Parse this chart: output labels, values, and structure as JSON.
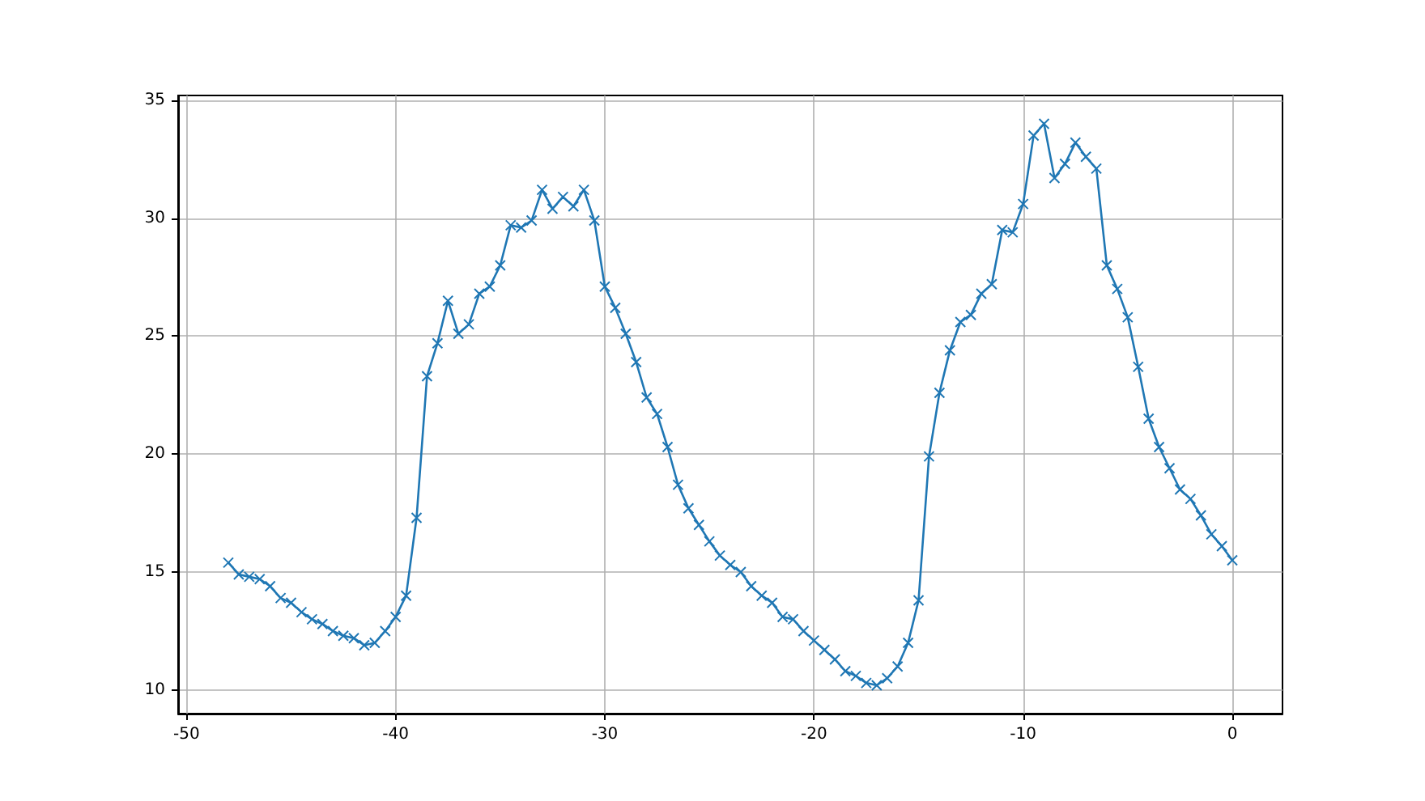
{
  "chart_data": {
    "type": "line",
    "x": [
      -48,
      -47.5,
      -47,
      -46.5,
      -46,
      -45.5,
      -45,
      -44.5,
      -44,
      -43.5,
      -43,
      -42.5,
      -42,
      -41.5,
      -41,
      -40.5,
      -40,
      -39.5,
      -39,
      -38.5,
      -38,
      -37.5,
      -37,
      -36.5,
      -36,
      -35.5,
      -35,
      -34.5,
      -34,
      -33.5,
      -33,
      -32.5,
      -32,
      -31.5,
      -31,
      -30.5,
      -30,
      -29.5,
      -29,
      -28.5,
      -28,
      -27.5,
      -27,
      -26.5,
      -26,
      -25.5,
      -25,
      -24.5,
      -24,
      -23.5,
      -23,
      -22.5,
      -22,
      -21.5,
      -21,
      -20.5,
      -20,
      -19.5,
      -19,
      -18.5,
      -18,
      -17.5,
      -17,
      -16.5,
      -16,
      -15.5,
      -15,
      -14.5,
      -14,
      -13.5,
      -13,
      -12.5,
      -12,
      -11.5,
      -11,
      -10.5,
      -10,
      -9.5,
      -9,
      -8.5,
      -8,
      -7.5,
      -7,
      -6.5,
      -6,
      -5.5,
      -5,
      -4.5,
      -4,
      -3.5,
      -3,
      -2.5,
      -2,
      -1.5,
      -1,
      -0.5,
      0
    ],
    "series": [
      {
        "color": "#1f77b4",
        "values": [
          15.4,
          14.9,
          14.8,
          14.7,
          14.4,
          13.9,
          13.7,
          13.3,
          13.0,
          12.8,
          12.5,
          12.3,
          12.2,
          11.9,
          12.0,
          12.5,
          13.1,
          14.0,
          17.3,
          23.3,
          24.7,
          26.5,
          25.1,
          25.5,
          26.8,
          27.1,
          28.0,
          29.7,
          29.6,
          29.9,
          31.2,
          30.4,
          30.9,
          30.5,
          31.2,
          29.9,
          27.1,
          26.2,
          25.1,
          23.9,
          22.4,
          21.7,
          20.3,
          18.7,
          17.7,
          17.0,
          16.3,
          15.7,
          15.3,
          15.0,
          14.4,
          14.0,
          13.7,
          13.1,
          13.0,
          12.5,
          12.1,
          11.7,
          11.3,
          10.8,
          10.6,
          10.3,
          10.2,
          10.5,
          11.0,
          12.0,
          13.8,
          19.9,
          22.6,
          24.4,
          25.6,
          25.9,
          26.8,
          27.2,
          29.5,
          29.4,
          30.6,
          33.5,
          34.0,
          31.7,
          32.3,
          33.2,
          32.6,
          32.1,
          28.0,
          27.0,
          25.8,
          23.7,
          21.5,
          20.3,
          19.4,
          18.5,
          18.1,
          17.4,
          16.6,
          16.1,
          15.5
        ]
      }
    ],
    "xlim": [
      -50.4,
      2.4
    ],
    "ylim": [
      9,
      35.2
    ],
    "xticks": [
      -50,
      -40,
      -30,
      -20,
      -10,
      0
    ],
    "yticks": [
      10,
      15,
      20,
      25,
      30,
      35
    ],
    "grid": true,
    "marker": "cross",
    "line_style": "solid"
  }
}
